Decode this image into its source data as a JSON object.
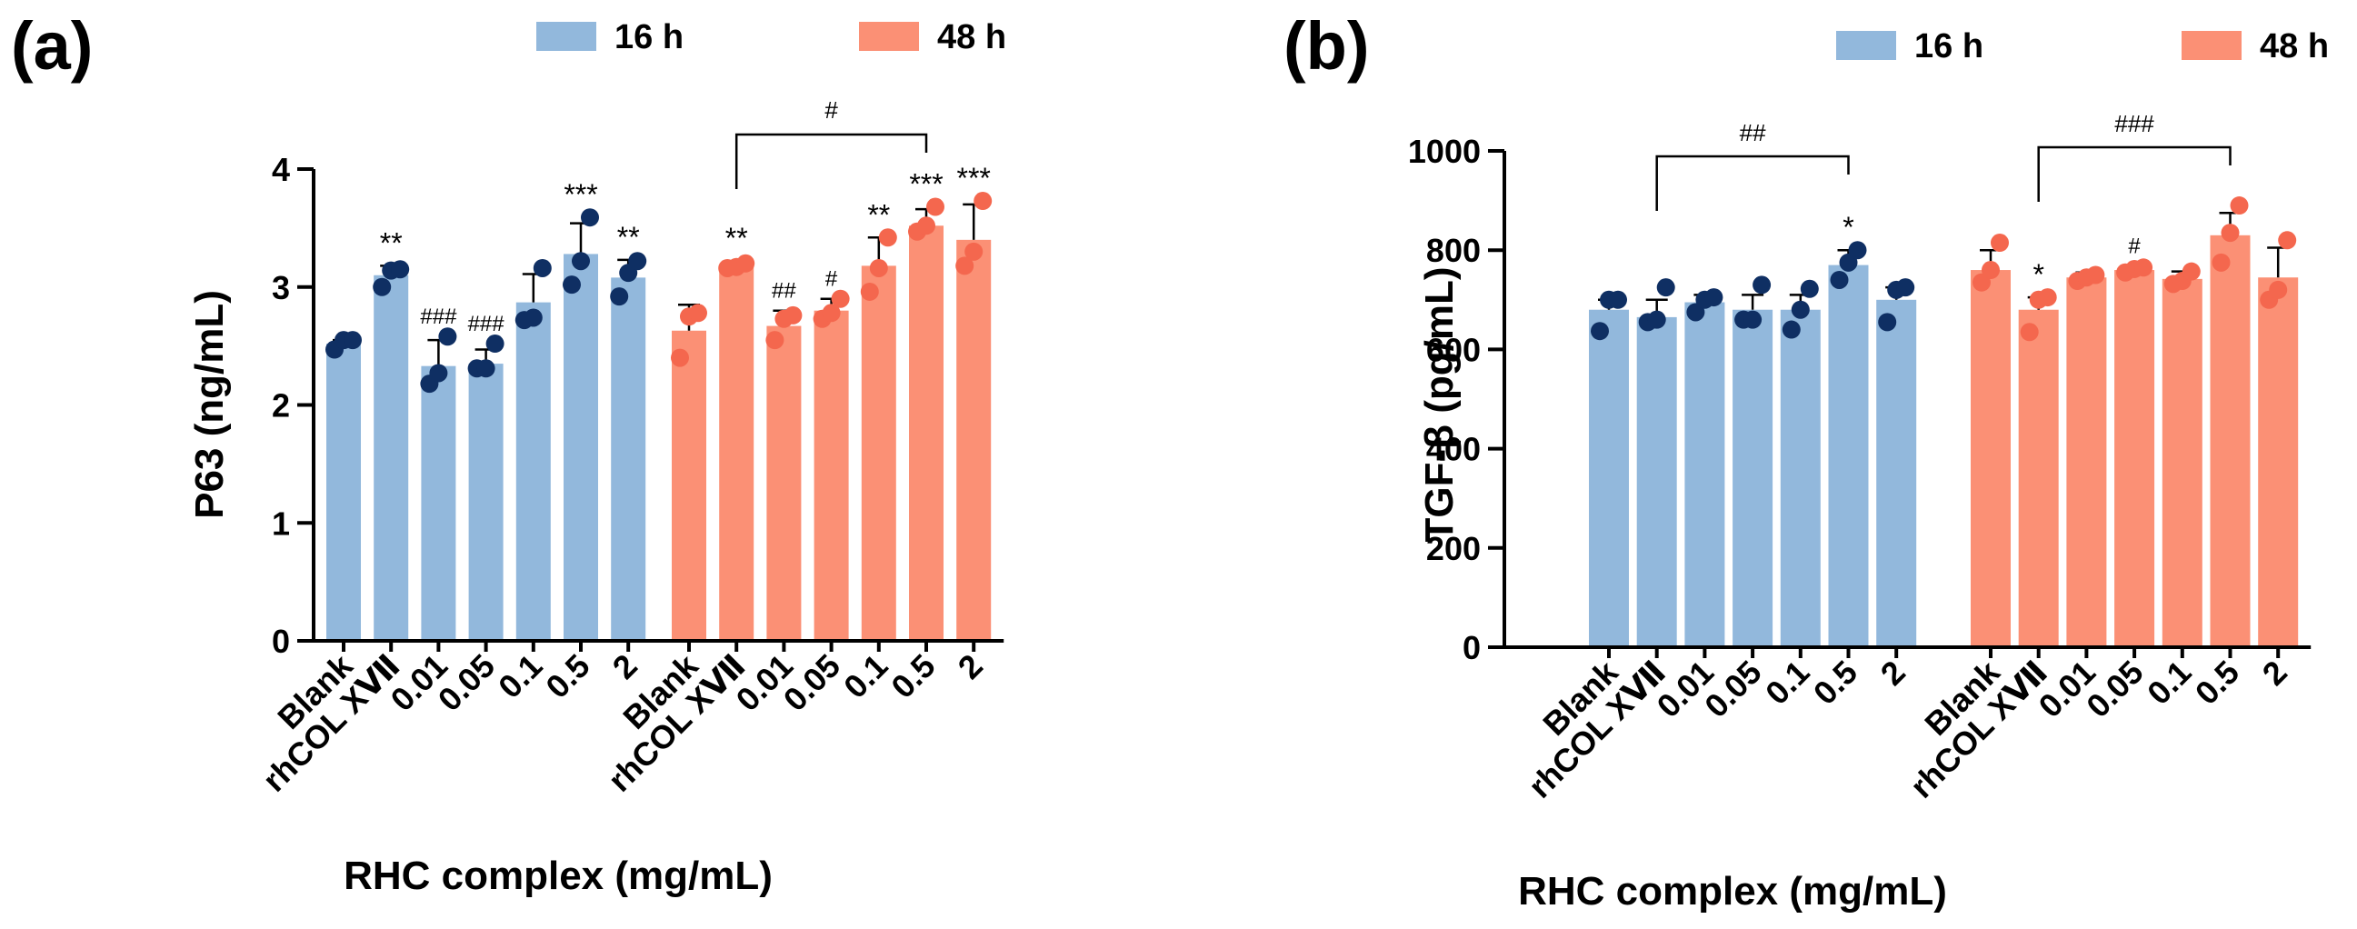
{
  "colors": {
    "series_16h_bar": "#92b8dc",
    "series_16h_point": "#0f2f63",
    "series_48h_bar": "#fb9075",
    "series_48h_point": "#f4674e",
    "axis": "#000000"
  },
  "chart_data": [
    {
      "type": "bar",
      "panel_label": "(a)",
      "xlabel": "RHC complex (mg/mL)",
      "ylabel": "P63 (ng/mL)",
      "ylim": [
        0,
        4
      ],
      "yticks": [
        "0",
        "1",
        "2",
        "3",
        "4"
      ],
      "legend_position": "top-right",
      "legend": [
        {
          "label": "16 h",
          "color": "#92b8dc"
        },
        {
          "label": "48 h",
          "color": "#fb9075"
        }
      ],
      "groups": [
        {
          "name": "16 h",
          "categories": [
            "Blank",
            "rhCOL XⅦ",
            "0.01",
            "0.05",
            "0.1",
            "0.5",
            "2"
          ],
          "values": [
            2.52,
            3.1,
            2.33,
            2.35,
            2.87,
            3.28,
            3.08
          ],
          "errors": [
            0.03,
            0.08,
            0.22,
            0.12,
            0.24,
            0.26,
            0.15
          ],
          "points": [
            [
              2.47,
              2.55,
              2.55
            ],
            [
              3.0,
              3.14,
              3.15
            ],
            [
              2.18,
              2.27,
              2.58
            ],
            [
              2.31,
              2.31,
              2.52
            ],
            [
              2.72,
              2.74,
              3.16
            ],
            [
              3.02,
              3.22,
              3.59
            ],
            [
              2.92,
              3.12,
              3.22
            ]
          ],
          "annotations": [
            "",
            "**",
            "###",
            "###",
            "",
            "***",
            "**"
          ]
        },
        {
          "name": "48 h",
          "categories": [
            "Blank",
            "rhCOL XⅦ",
            "0.01",
            "0.05",
            "0.1",
            "0.5",
            "2"
          ],
          "values": [
            2.63,
            3.18,
            2.67,
            2.8,
            3.18,
            3.52,
            3.4
          ],
          "errors": [
            0.22,
            0.04,
            0.13,
            0.1,
            0.24,
            0.14,
            0.3
          ],
          "points": [
            [
              2.4,
              2.75,
              2.78
            ],
            [
              3.16,
              3.17,
              3.2
            ],
            [
              2.55,
              2.73,
              2.76
            ],
            [
              2.73,
              2.78,
              2.9
            ],
            [
              2.96,
              3.16,
              3.42
            ],
            [
              3.47,
              3.52,
              3.68
            ],
            [
              3.18,
              3.3,
              3.73
            ]
          ],
          "annotations": [
            "",
            "**",
            "##",
            "#",
            "**",
            "***",
            "***"
          ]
        }
      ],
      "bracket": {
        "from": "rhCOL XⅦ 48 h",
        "to": "0.5 48 h",
        "label": "#"
      }
    },
    {
      "type": "bar",
      "panel_label": "(b)",
      "xlabel": "RHC complex (mg/mL)",
      "ylabel": "TGF-β (pg/mL)",
      "ylim": [
        0,
        1000
      ],
      "yticks": [
        "0",
        "200",
        "400",
        "600",
        "800",
        "1000"
      ],
      "legend_position": "top-right",
      "legend": [
        {
          "label": "16 h",
          "color": "#92b8dc"
        },
        {
          "label": "48 h",
          "color": "#fb9075"
        }
      ],
      "groups": [
        {
          "name": "16 h",
          "categories": [
            "Blank",
            "rhCOL XⅦ",
            "0.01",
            "0.05",
            "0.1",
            "0.5",
            "2"
          ],
          "values": [
            680,
            665,
            695,
            680,
            680,
            770,
            700
          ],
          "errors": [
            20,
            35,
            15,
            30,
            30,
            30,
            25
          ],
          "points": [
            [
              637,
              700,
              700
            ],
            [
              655,
              660,
              725
            ],
            [
              675,
              700,
              705
            ],
            [
              660,
              660,
              730
            ],
            [
              640,
              680,
              722
            ],
            [
              740,
              775,
              800
            ],
            [
              655,
              720,
              725
            ]
          ],
          "annotations": [
            "",
            "",
            "",
            "",
            "",
            "*",
            ""
          ]
        },
        {
          "name": "48 h",
          "categories": [
            "Blank",
            "rhCOL XⅦ",
            "0.01",
            "0.05",
            "0.1",
            "0.5",
            "2"
          ],
          "values": [
            760,
            680,
            745,
            760,
            742,
            830,
            745
          ],
          "errors": [
            40,
            25,
            10,
            8,
            15,
            45,
            60
          ],
          "points": [
            [
              735,
              760,
              815
            ],
            [
              635,
              700,
              705
            ],
            [
              738,
              745,
              750
            ],
            [
              755,
              762,
              765
            ],
            [
              732,
              738,
              757
            ],
            [
              775,
              835,
              890
            ],
            [
              700,
              720,
              820
            ]
          ],
          "annotations": [
            "",
            "*",
            "",
            "#",
            "",
            "",
            ""
          ]
        }
      ],
      "bracket": [
        {
          "from": "rhCOL XⅦ 16 h",
          "to": "0.5 16 h",
          "label": "##"
        },
        {
          "from": "rhCOL XⅦ 48 h",
          "to": "0.5 48 h",
          "label": "###"
        }
      ]
    }
  ]
}
